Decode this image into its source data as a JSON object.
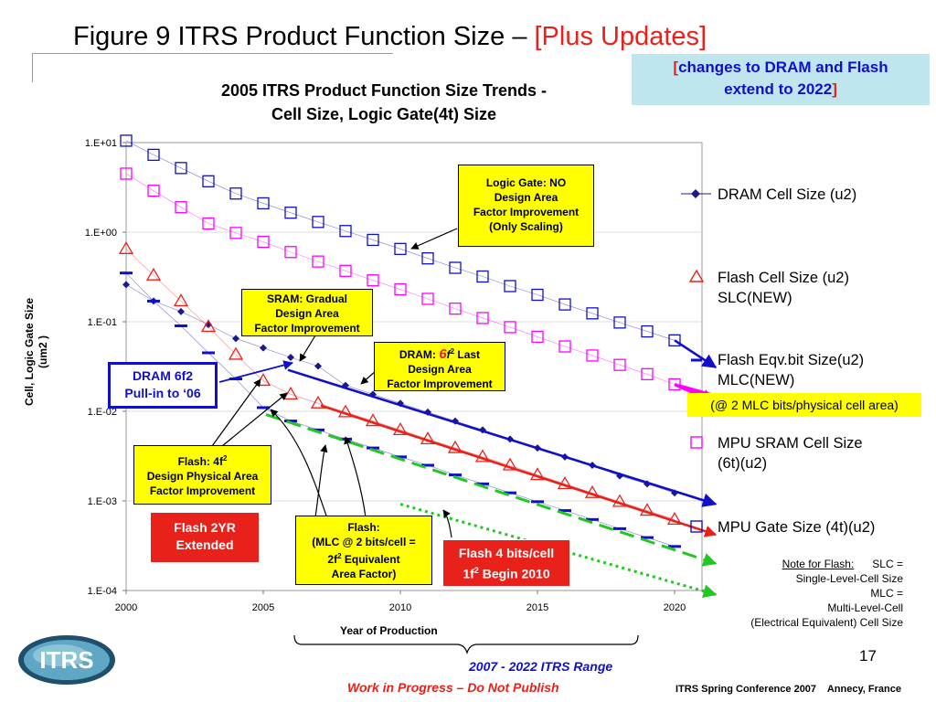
{
  "slide": {
    "title_main": "Figure 9 ITRS Product Function Size – ",
    "title_update": "[Plus Updates]",
    "update_note": {
      "open": "[",
      "text1": "changes to DRAM and Flash",
      "text2": "extend to 2022",
      "close": "]"
    },
    "page_number": "17",
    "range_label": "2007 - 2022 ITRS Range",
    "wip_label": "Work in Progress – Do Not Publish",
    "conference": "ITRS Spring Conference 2007    Annecy, France",
    "logo_text": "ITRS"
  },
  "chart_data": {
    "type": "scatter",
    "title_line1": "2005 ITRS Product Function Size Trends -",
    "title_line2": "Cell Size, Logic Gate(4t) Size",
    "xlabel": "Year of Production",
    "ylabel_line1": "Cell, Logic Gate Size",
    "ylabel_line2": "(um2 )",
    "y_scale": "log",
    "xlim": [
      2000,
      2021
    ],
    "ylim": [
      0.0001,
      10
    ],
    "x_ticks": [
      "2000",
      "2005",
      "2010",
      "2015",
      "2020"
    ],
    "x_tick_values": [
      2000,
      2005,
      2010,
      2015,
      2020
    ],
    "y_ticks": [
      "1.E+01",
      "1.E+00",
      "1.E-01",
      "1.E-02",
      "1.E-03",
      "1.E-04"
    ],
    "y_tick_values": [
      10,
      1,
      0.1,
      0.01,
      0.001,
      0.0001
    ],
    "legend_position": "right",
    "series": [
      {
        "name": "DRAM Cell Size (u2)",
        "marker": "diamond",
        "color": "#1a1a8c",
        "x": [
          2000,
          2001,
          2002,
          2003,
          2004,
          2005,
          2006,
          2007,
          2008,
          2009,
          2010,
          2011,
          2012,
          2013,
          2014,
          2015,
          2016,
          2017,
          2018,
          2019,
          2020
        ],
        "y": [
          0.26,
          0.17,
          0.13,
          0.093,
          0.065,
          0.051,
          0.04,
          0.032,
          0.0195,
          0.0155,
          0.0123,
          0.0098,
          0.0078,
          0.0062,
          0.0049,
          0.0039,
          0.0031,
          0.0025,
          0.0019,
          0.00155,
          0.00123
        ]
      },
      {
        "name": "Flash Cell Size (u2) SLC(NEW)",
        "name_line1": "Flash Cell Size (u2)",
        "name_line2": "SLC(NEW)",
        "marker": "triangle",
        "color": "#e8221b",
        "x": [
          2000,
          2001,
          2002,
          2003,
          2004,
          2005,
          2006,
          2007,
          2008,
          2009,
          2010,
          2011,
          2012,
          2013,
          2014,
          2015,
          2016,
          2017,
          2018,
          2019,
          2020
        ],
        "y": [
          0.65,
          0.33,
          0.17,
          0.088,
          0.043,
          0.022,
          0.0155,
          0.0123,
          0.0098,
          0.0078,
          0.0062,
          0.0049,
          0.0039,
          0.0031,
          0.0025,
          0.00195,
          0.00155,
          0.00123,
          0.00098,
          0.00078,
          0.00062
        ]
      },
      {
        "name": "Flash Eqv.bit Size(u2) MLC(NEW)",
        "name_line1": "Flash Eqv.bit Size(u2)",
        "name_line2": "MLC(NEW)",
        "marker": "dash",
        "color": "#1010c8",
        "x": [
          2000,
          2001,
          2002,
          2003,
          2004,
          2005,
          2006,
          2007,
          2008,
          2009,
          2010,
          2011,
          2012,
          2013,
          2014,
          2015,
          2016,
          2017,
          2018,
          2019,
          2020
        ],
        "y": [
          0.35,
          0.17,
          0.09,
          0.045,
          0.023,
          0.011,
          0.0078,
          0.0062,
          0.0049,
          0.0039,
          0.0031,
          0.0025,
          0.00195,
          0.00155,
          0.00123,
          0.00098,
          0.00078,
          0.00062,
          0.00049,
          0.00039,
          0.00031
        ]
      },
      {
        "name": "MPU SRAM Cell Size (6t)(u2)",
        "name_line1": "MPU SRAM Cell Size",
        "name_line2": "(6t)(u2)",
        "marker": "square",
        "color": "#ff00ff",
        "x": [
          2000,
          2001,
          2002,
          2003,
          2004,
          2005,
          2006,
          2007,
          2008,
          2009,
          2010,
          2011,
          2012,
          2013,
          2014,
          2015,
          2016,
          2017,
          2018,
          2019,
          2020
        ],
        "y": [
          4.5,
          2.9,
          1.9,
          1.25,
          0.98,
          0.78,
          0.6,
          0.47,
          0.37,
          0.29,
          0.23,
          0.18,
          0.14,
          0.11,
          0.087,
          0.068,
          0.053,
          0.042,
          0.033,
          0.026,
          0.02
        ]
      },
      {
        "name": "MPU Gate Size (4t)(u2)",
        "marker": "square",
        "color": "#1010c8",
        "x": [
          2000,
          2001,
          2002,
          2003,
          2004,
          2005,
          2006,
          2007,
          2008,
          2009,
          2010,
          2011,
          2012,
          2013,
          2014,
          2015,
          2016,
          2017,
          2018,
          2019,
          2020
        ],
        "y": [
          10.5,
          7.3,
          5.2,
          3.7,
          2.7,
          2.1,
          1.65,
          1.3,
          1.03,
          0.82,
          0.65,
          0.51,
          0.4,
          0.32,
          0.25,
          0.2,
          0.156,
          0.124,
          0.098,
          0.078,
          0.062
        ]
      }
    ],
    "trend_lines": [
      {
        "label": "DRAM update",
        "color": "#1010c8",
        "style": "solid",
        "x": [
          2005.9,
          2021.5
        ],
        "y": [
          0.029,
          0.00092
        ]
      },
      {
        "label": "Flash SLC update",
        "color": "#e8221b",
        "style": "solid",
        "x": [
          2007.1,
          2021.5
        ],
        "y": [
          0.0116,
          0.00042
        ]
      },
      {
        "label": "Flash MLC update",
        "color": "#22c822",
        "style": "dashed",
        "x": [
          2005.1,
          2021.5
        ],
        "y": [
          0.0092,
          0.0002
        ]
      },
      {
        "label": "Flash 4 bits/cell",
        "color": "#22c822",
        "style": "dotted",
        "x": [
          2010.0,
          2021.5
        ],
        "y": [
          0.00092,
          9e-05
        ]
      },
      {
        "label": "MPU gate extend",
        "color": "#1010c8",
        "style": "solid",
        "x": [
          2020.0,
          2021.5
        ],
        "y": [
          0.062,
          0.031
        ]
      },
      {
        "label": "SRAM extend",
        "color": "#ff00ff",
        "style": "solid",
        "x": [
          2020.0,
          2021.5
        ],
        "y": [
          0.02,
          0.0125
        ]
      }
    ],
    "annotations": {
      "logic_gate": [
        "Logic Gate:  NO",
        "Design Area",
        "Factor Improvement",
        "(Only Scaling)"
      ],
      "sram": [
        "SRAM:  Gradual",
        "Design Area",
        "Factor Improvement"
      ],
      "dram_a": "DRAM:  ",
      "dram_b": "6",
      "dram_c": "f",
      "dram_d": "2",
      "dram_e": "  Last",
      "dram_lines": [
        "Design Area",
        "Factor Improvement"
      ],
      "dram_pullin": [
        "DRAM 6f2",
        "Pull-in to ‘06"
      ],
      "flash_4f_a": "Flash:  4f",
      "flash_4f_b": "2",
      "flash_4f_lines": [
        "Design Physical Area",
        "Factor Improvement"
      ],
      "flash_2yr": [
        "Flash 2YR",
        "Extended"
      ],
      "flash_mlc_1": "Flash:",
      "flash_mlc_2": "(MLC @ 2 bits/cell =",
      "flash_mlc_3a": "2f",
      "flash_mlc_3b": "2",
      "flash_mlc_3c": " Equivalent",
      "flash_mlc_4": "Area Factor)",
      "flash_4bits_1": "Flash 4 bits/cell",
      "flash_4bits_2a": "1f",
      "flash_4bits_2b": "2",
      "flash_4bits_2c": " Begin 2010",
      "mlc_note": "(@ 2 MLC bits/physical cell area)"
    },
    "note_flash": {
      "label": "Note for Flash:",
      "slc": "      SLC =",
      "lines": [
        "Single-Level-Cell Size",
        "MLC =",
        "Multi-Level-Cell",
        "(Electrical Equivalent) Cell Size"
      ]
    }
  }
}
